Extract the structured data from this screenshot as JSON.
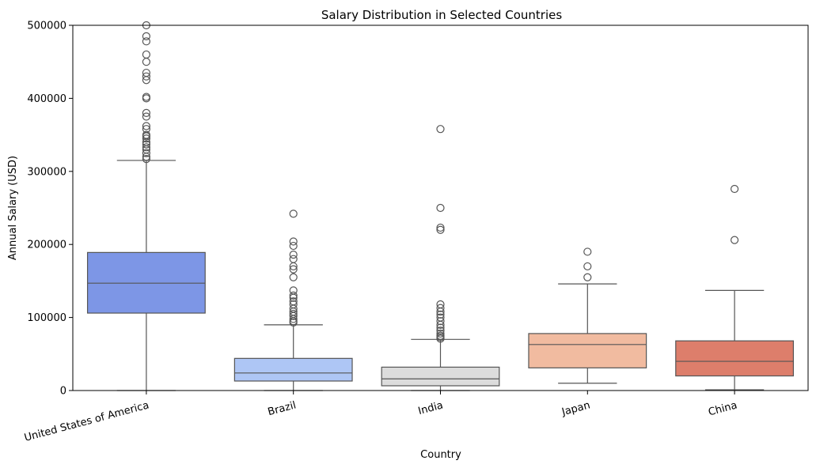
{
  "chart_data": {
    "type": "box",
    "title": "Salary Distribution in Selected Countries",
    "xlabel": "Country",
    "ylabel": "Annual Salary (USD)",
    "ylim": [
      0,
      500000
    ],
    "yticks": [
      0,
      100000,
      200000,
      300000,
      400000,
      500000
    ],
    "ytick_labels": [
      "0",
      "100000",
      "200000",
      "300000",
      "400000",
      "500000"
    ],
    "grid": false,
    "categories": [
      "United States of America",
      "Brazil",
      "India",
      "Japan",
      "China"
    ],
    "boxes": [
      {
        "category": "United States of America",
        "color": "#7d96e6",
        "whisker_low": 0,
        "q1": 106000,
        "median": 147000,
        "q3": 189000,
        "whisker_high": 315000,
        "outliers": [
          317000,
          320000,
          325000,
          330000,
          333000,
          337000,
          340000,
          345000,
          348000,
          350000,
          358000,
          362000,
          375000,
          380000,
          400000,
          402000,
          425000,
          430000,
          435000,
          450000,
          460000,
          478000,
          485000,
          500000
        ]
      },
      {
        "category": "Brazil",
        "color": "#aec6f5",
        "whisker_low": 0,
        "q1": 13000,
        "median": 24000,
        "q3": 44000,
        "whisker_high": 90000,
        "outliers": [
          93000,
          95000,
          98000,
          102000,
          105000,
          108000,
          112000,
          118000,
          122000,
          127000,
          130000,
          137000,
          155000,
          166000,
          170000,
          180000,
          186000,
          198000,
          204000,
          242000
        ]
      },
      {
        "category": "India",
        "color": "#dcdcdc",
        "whisker_low": 0,
        "q1": 6500,
        "median": 16000,
        "q3": 32000,
        "whisker_high": 70000,
        "outliers": [
          71000,
          73000,
          75000,
          78000,
          82000,
          86000,
          90000,
          95000,
          100000,
          104000,
          108000,
          113000,
          118000,
          220000,
          223000,
          250000,
          358000
        ]
      },
      {
        "category": "Japan",
        "color": "#f1bba0",
        "whisker_low": 10000,
        "q1": 31000,
        "median": 63000,
        "q3": 78000,
        "whisker_high": 146000,
        "outliers": [
          155000,
          170000,
          190000
        ]
      },
      {
        "category": "China",
        "color": "#dd7e6b",
        "whisker_low": 1000,
        "q1": 20000,
        "median": 40000,
        "q3": 68000,
        "whisker_high": 137000,
        "outliers": [
          206000,
          276000
        ]
      }
    ]
  }
}
